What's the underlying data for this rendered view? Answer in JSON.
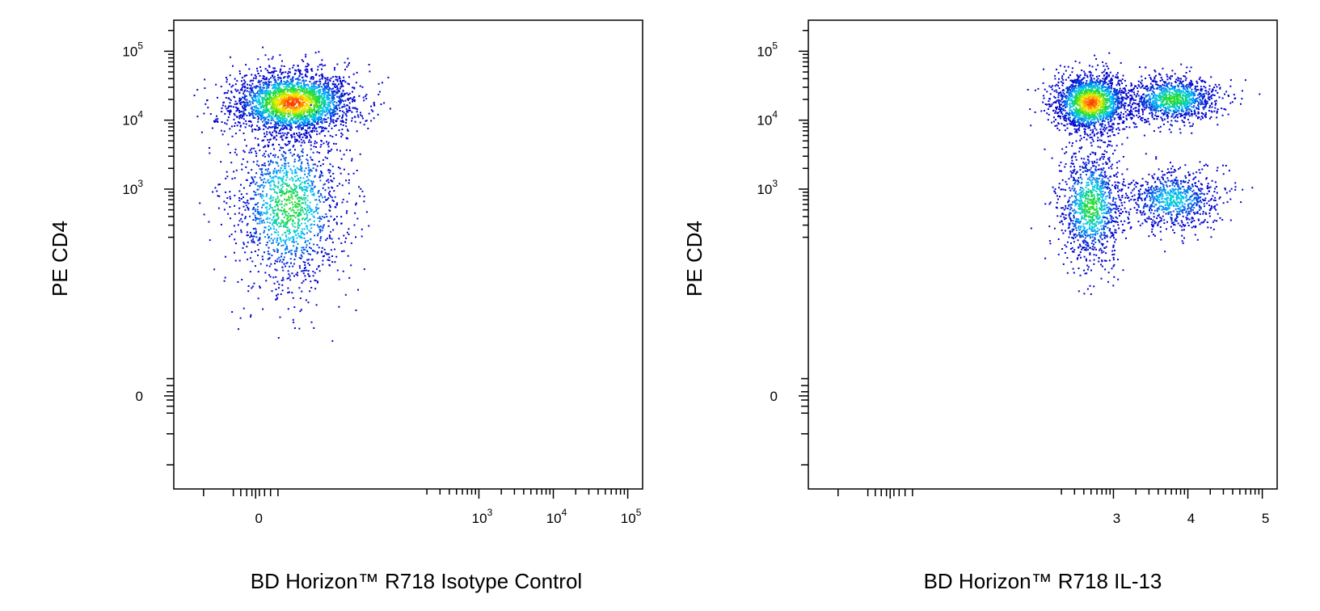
{
  "figure_type": "flow cytometry dot plots",
  "chart_data": [
    {
      "type": "scatter",
      "title": "",
      "xlabel": "BD Horizon™ R718 Isotype Control",
      "ylabel": "PE CD4",
      "x_scale": "biexponential",
      "y_scale": "biexponential",
      "xlim": [
        -1.1,
        5.2
      ],
      "ylim": [
        -1.35,
        5.45
      ],
      "x_ticks": [
        {
          "value": 0,
          "label": "0"
        },
        {
          "value": 3,
          "label": "10",
          "exp": "3"
        },
        {
          "value": 4,
          "label": "10",
          "exp": "4"
        },
        {
          "value": 5,
          "label": "10",
          "exp": "5"
        }
      ],
      "y_ticks": [
        {
          "value": 0,
          "label": "0"
        },
        {
          "value": 3,
          "label": "10",
          "exp": "3"
        },
        {
          "value": 4,
          "label": "10",
          "exp": "4"
        },
        {
          "value": 5,
          "label": "10",
          "exp": "5"
        }
      ],
      "populations": [
        {
          "name": "CD4+",
          "center_x": 0.5,
          "center_y": 4.25,
          "spread_x": 0.75,
          "spread_y": 0.42,
          "density": "high",
          "approx_events": 2600
        },
        {
          "name": "CD4-",
          "center_x": 0.45,
          "center_y": 2.75,
          "spread_x": 0.7,
          "spread_y": 1.1,
          "density": "medium",
          "approx_events": 1500
        }
      ],
      "color_scale": [
        "#0000cc",
        "#00c8ff",
        "#22dd22",
        "#ffee00",
        "#ff2200"
      ]
    },
    {
      "type": "scatter",
      "title": "",
      "xlabel": "BD Horizon™ R718 IL-13",
      "ylabel": "PE CD4",
      "x_scale": "biexponential",
      "y_scale": "biexponential",
      "xlim": [
        -1.1,
        5.2
      ],
      "ylim": [
        -1.35,
        5.45
      ],
      "x_ticks": [
        {
          "value": 3,
          "label": "3"
        },
        {
          "value": 4,
          "label": "4"
        },
        {
          "value": 5,
          "label": "5"
        }
      ],
      "y_ticks": [
        {
          "value": 0,
          "label": "0"
        },
        {
          "value": 3,
          "label": "10",
          "exp": "3"
        },
        {
          "value": 4,
          "label": "10",
          "exp": "4"
        },
        {
          "value": 5,
          "label": "10",
          "exp": "5"
        }
      ],
      "populations": [
        {
          "name": "CD4+ IL-13-",
          "center_x": 2.7,
          "center_y": 4.25,
          "spread_x": 0.45,
          "spread_y": 0.38,
          "density": "high",
          "approx_events": 1800
        },
        {
          "name": "CD4+ IL-13+",
          "center_x": 3.8,
          "center_y": 4.3,
          "spread_x": 0.55,
          "spread_y": 0.3,
          "density": "medium",
          "approx_events": 1100
        },
        {
          "name": "CD4- IL-13-",
          "center_x": 2.7,
          "center_y": 2.75,
          "spread_x": 0.4,
          "spread_y": 0.75,
          "density": "medium",
          "approx_events": 1100
        },
        {
          "name": "CD4- IL-13+",
          "center_x": 3.8,
          "center_y": 2.85,
          "spread_x": 0.6,
          "spread_y": 0.4,
          "density": "low",
          "approx_events": 800
        }
      ],
      "color_scale": [
        "#0000cc",
        "#00c8ff",
        "#22dd22",
        "#ffee00",
        "#ff2200"
      ]
    }
  ]
}
